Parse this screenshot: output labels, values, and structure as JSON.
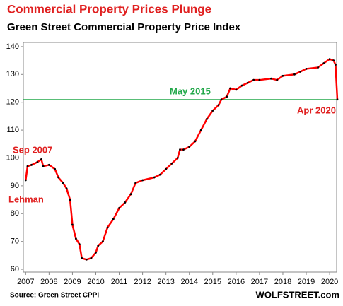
{
  "chart_data": {
    "type": "line",
    "title": "Commercial Property Prices Plunge",
    "subtitle": "Green Street Commercial Property Price Index",
    "source": "Source: Green Street CPPI",
    "brand": "WOLFSTREET.com",
    "x": [
      2007.0,
      2007.08,
      2007.25,
      2007.5,
      2007.67,
      2007.75,
      2008.0,
      2008.25,
      2008.4,
      2008.6,
      2008.75,
      2008.9,
      2009.0,
      2009.15,
      2009.3,
      2009.4,
      2009.6,
      2009.8,
      2010.0,
      2010.1,
      2010.3,
      2010.5,
      2010.75,
      2011.0,
      2011.25,
      2011.5,
      2011.7,
      2012.0,
      2012.5,
      2012.75,
      2013.0,
      2013.25,
      2013.5,
      2013.6,
      2013.75,
      2014.0,
      2014.25,
      2014.5,
      2014.75,
      2015.0,
      2015.25,
      2015.37,
      2015.6,
      2015.75,
      2016.0,
      2016.25,
      2016.5,
      2016.75,
      2017.0,
      2017.5,
      2017.75,
      2018.0,
      2018.5,
      2018.75,
      2019.0,
      2019.5,
      2019.75,
      2020.0,
      2020.17,
      2020.25,
      2020.33
    ],
    "series": [
      {
        "name": "Green Street CPPI",
        "color": "#ff0000",
        "marker_color": "#000000",
        "values": [
          92,
          97,
          97.5,
          98.5,
          99.5,
          97,
          97.5,
          96,
          93,
          91,
          89,
          85,
          76,
          71,
          69,
          64,
          63.5,
          64,
          66,
          68.5,
          70,
          75,
          78,
          82,
          84,
          87,
          91,
          92,
          93,
          94,
          96,
          98,
          100,
          103,
          103,
          104,
          106,
          110,
          114,
          117,
          119,
          121,
          122,
          125,
          124.5,
          126,
          127,
          128,
          128,
          128.5,
          128,
          129.5,
          130,
          131,
          132,
          132.5,
          134,
          135.5,
          135,
          133.5,
          121
        ]
      }
    ],
    "xlim": [
      2006.9,
      2020.3
    ],
    "ylim": [
      59,
      141.5
    ],
    "xticks": [
      2007,
      2008,
      2009,
      2010,
      2011,
      2012,
      2013,
      2014,
      2015,
      2016,
      2017,
      2018,
      2019,
      2020
    ],
    "yticks": [
      60,
      70,
      80,
      90,
      100,
      110,
      120,
      130,
      140
    ],
    "reference_line": {
      "value": 121,
      "color": "#22a84a"
    },
    "annotations": [
      {
        "text": "Sep 2007",
        "color": "#e02020"
      },
      {
        "text": "Lehman",
        "color": "#e02020"
      },
      {
        "text": "May 2015",
        "color": "#22a84a"
      },
      {
        "text": "Apr 2020",
        "color": "#e02020"
      }
    ]
  }
}
